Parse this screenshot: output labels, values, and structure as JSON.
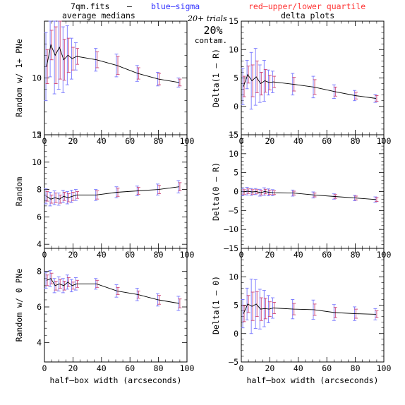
{
  "header": {
    "file_label": "7qm.fits",
    "dash": "–",
    "blue_label": "blue–sigma",
    "red_label": "red–upper/lower quartile",
    "left_col_title": "average medians",
    "right_col_title": "delta plots",
    "trials_label": "20+ trials",
    "contam_pct": "20%",
    "contam_label": "contam."
  },
  "colors": {
    "line": "#000000",
    "sigma": "#7777ff",
    "quartile": "#cc4477",
    "header_blue": "#3333ff",
    "header_red": "#ff3333"
  },
  "x_axis_label": "half–box width (arcseconds)",
  "chart_data": [
    {
      "type": "line",
      "ylabel": "Random w/ 1+ PNe",
      "xlim": [
        0,
        100
      ],
      "ylim": [
        5,
        15
      ],
      "yticks": [
        5,
        10,
        15
      ],
      "ytick_labels": [
        "5",
        "10",
        ""
      ],
      "x": [
        1.5,
        4.5,
        7.5,
        10.5,
        13.5,
        16.5,
        19.5,
        22.5,
        36.5,
        51,
        65.5,
        80,
        94.5
      ],
      "y": [
        11.0,
        12.9,
        12.0,
        12.7,
        11.6,
        12.0,
        11.7,
        11.9,
        11.6,
        11.1,
        10.4,
        9.9,
        9.6
      ],
      "sigma": [
        3.0,
        2.8,
        3.4,
        3.7,
        2.9,
        2.6,
        1.8,
        1.2,
        1.0,
        1.0,
        0.7,
        0.6,
        0.4
      ],
      "quartile": [
        1.5,
        1.3,
        2.5,
        2.8,
        1.8,
        1.5,
        1.0,
        0.7,
        0.7,
        0.8,
        0.5,
        0.5,
        0.3
      ]
    },
    {
      "type": "line",
      "ylabel": "Delta(1 – R)",
      "xlim": [
        0,
        100
      ],
      "ylim": [
        -5,
        15
      ],
      "yticks": [
        -5,
        0,
        5,
        10,
        15
      ],
      "ytick_labels": [
        "–5",
        "0",
        "5",
        "10",
        "15"
      ],
      "x": [
        1.5,
        4.5,
        7.5,
        10.5,
        13.5,
        16.5,
        19.5,
        22.5,
        36.5,
        51,
        65.5,
        80,
        94.5
      ],
      "y": [
        3.5,
        5.6,
        4.5,
        5.2,
        4.0,
        4.5,
        4.2,
        4.3,
        3.9,
        3.4,
        2.6,
        1.9,
        1.4
      ],
      "sigma": [
        3.2,
        2.5,
        5.0,
        5.0,
        3.3,
        3.6,
        2.2,
        1.9,
        1.9,
        1.9,
        1.2,
        0.9,
        0.7
      ],
      "quartile": [
        1.8,
        1.5,
        2.8,
        2.8,
        2.0,
        2.0,
        1.3,
        1.0,
        1.2,
        1.3,
        0.8,
        0.6,
        0.5
      ]
    },
    {
      "type": "line",
      "ylabel": "Random",
      "xlim": [
        0,
        100
      ],
      "ylim": [
        3.7,
        12
      ],
      "yticks": [
        4,
        6,
        8,
        10,
        12
      ],
      "ytick_labels": [
        "4",
        "6",
        "8",
        "10",
        "12"
      ],
      "x": [
        1.5,
        4.5,
        7.5,
        10.5,
        13.5,
        16.5,
        19.5,
        22.5,
        36.5,
        51,
        65.5,
        80,
        94.5
      ],
      "y": [
        7.5,
        7.3,
        7.4,
        7.3,
        7.5,
        7.4,
        7.5,
        7.6,
        7.6,
        7.8,
        7.9,
        8.0,
        8.2
      ],
      "sigma": [
        0.55,
        0.5,
        0.5,
        0.45,
        0.45,
        0.45,
        0.45,
        0.4,
        0.4,
        0.4,
        0.35,
        0.4,
        0.45
      ],
      "quartile": [
        0.35,
        0.3,
        0.35,
        0.3,
        0.3,
        0.3,
        0.3,
        0.25,
        0.3,
        0.3,
        0.25,
        0.3,
        0.3
      ]
    },
    {
      "type": "line",
      "ylabel": "Delta(0 – R)",
      "xlim": [
        0,
        100
      ],
      "ylim": [
        -15,
        15
      ],
      "yticks": [
        -15,
        -10,
        -5,
        0,
        5,
        10,
        15
      ],
      "ytick_labels": [
        "–15",
        "–10",
        "–5",
        "0",
        "5",
        "10",
        "15"
      ],
      "x": [
        1.5,
        4.5,
        7.5,
        10.5,
        13.5,
        16.5,
        19.5,
        22.5,
        36.5,
        51,
        65.5,
        80,
        94.5
      ],
      "y": [
        -0.1,
        0.1,
        -0.1,
        0.0,
        -0.3,
        0.0,
        -0.2,
        -0.3,
        -0.4,
        -0.9,
        -1.3,
        -1.7,
        -2.1
      ],
      "sigma": [
        1.0,
        1.0,
        0.9,
        0.8,
        0.9,
        1.0,
        0.9,
        0.8,
        0.8,
        0.8,
        0.7,
        0.7,
        0.7
      ],
      "quartile": [
        0.6,
        0.6,
        0.6,
        0.5,
        0.6,
        0.6,
        0.6,
        0.5,
        0.5,
        0.5,
        0.5,
        0.5,
        0.5
      ]
    },
    {
      "type": "line",
      "ylabel": "Random w/ 0 PNe",
      "xlim": [
        0,
        100
      ],
      "ylim": [
        2.9,
        9.3
      ],
      "yticks": [
        4,
        6,
        8
      ],
      "ytick_labels": [
        "4",
        "6",
        "8"
      ],
      "x": [
        1.5,
        4.5,
        7.5,
        10.5,
        13.5,
        16.5,
        19.5,
        22.5,
        36.5,
        51,
        65.5,
        80,
        94.5
      ],
      "y": [
        7.5,
        7.6,
        7.2,
        7.3,
        7.2,
        7.4,
        7.2,
        7.3,
        7.3,
        6.9,
        6.7,
        6.4,
        6.2
      ],
      "sigma": [
        0.45,
        0.45,
        0.4,
        0.4,
        0.4,
        0.4,
        0.35,
        0.35,
        0.3,
        0.35,
        0.35,
        0.35,
        0.4
      ],
      "quartile": [
        0.3,
        0.3,
        0.25,
        0.25,
        0.25,
        0.25,
        0.2,
        0.2,
        0.2,
        0.2,
        0.2,
        0.25,
        0.25
      ]
    },
    {
      "type": "line",
      "ylabel": "Delta(1 – 0)",
      "xlim": [
        0,
        100
      ],
      "ylim": [
        -5,
        15
      ],
      "yticks": [
        -5,
        0,
        5,
        10,
        15
      ],
      "ytick_labels": [
        "–5",
        "0",
        "5",
        "10",
        ""
      ],
      "x": [
        1.5,
        4.5,
        7.5,
        10.5,
        13.5,
        16.5,
        19.5,
        22.5,
        36.5,
        51,
        65.5,
        80,
        94.5
      ],
      "y": [
        3.5,
        5.2,
        4.8,
        5.2,
        4.3,
        4.4,
        4.3,
        4.5,
        4.3,
        4.2,
        3.7,
        3.5,
        3.4
      ],
      "sigma": [
        2.5,
        2.8,
        4.8,
        4.3,
        3.5,
        3.2,
        2.4,
        1.8,
        1.7,
        1.7,
        1.4,
        1.2,
        1.0
      ],
      "quartile": [
        1.4,
        1.5,
        2.5,
        2.2,
        2.0,
        1.8,
        1.3,
        1.0,
        1.0,
        1.0,
        0.9,
        0.8,
        0.6
      ]
    }
  ],
  "x_ticks": [
    0,
    20,
    40,
    60,
    80,
    100
  ]
}
